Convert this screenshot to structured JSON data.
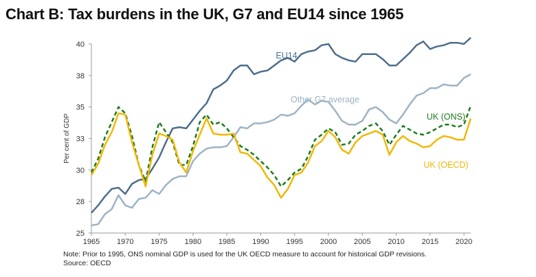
{
  "chart_data": {
    "type": "line",
    "title": "Chart B: Tax burdens in the UK, G7 and EU14 since 1965",
    "xlabel": "",
    "ylabel": "Per cent of GDP",
    "xlim": [
      1965,
      2021
    ],
    "ylim": [
      25,
      40
    ],
    "x_ticks": [
      1965,
      1970,
      1975,
      1980,
      1985,
      1990,
      1995,
      2000,
      2005,
      2010,
      2015,
      2020
    ],
    "y_ticks": [
      25,
      27.5,
      30,
      32.5,
      35,
      37.5,
      40
    ],
    "y_tick_labels": [
      "25",
      "28",
      "30",
      "33",
      "35",
      "38",
      "40"
    ],
    "x": [
      1965,
      1966,
      1967,
      1968,
      1969,
      1970,
      1971,
      1972,
      1973,
      1974,
      1975,
      1976,
      1977,
      1978,
      1979,
      1980,
      1981,
      1982,
      1983,
      1984,
      1985,
      1986,
      1987,
      1988,
      1989,
      1990,
      1991,
      1992,
      1993,
      1994,
      1995,
      1996,
      1997,
      1998,
      1999,
      2000,
      2001,
      2002,
      2003,
      2004,
      2005,
      2006,
      2007,
      2008,
      2009,
      2010,
      2011,
      2012,
      2013,
      2014,
      2015,
      2016,
      2017,
      2018,
      2019,
      2020,
      2021
    ],
    "series": [
      {
        "name": "EU14",
        "label": "EU14",
        "color": "#4d6d8a",
        "dash": "",
        "values": [
          26.6,
          27.2,
          27.9,
          28.5,
          28.6,
          28.1,
          28.9,
          29.2,
          29.3,
          30.1,
          31.0,
          32.2,
          33.3,
          33.4,
          33.3,
          34.0,
          34.7,
          35.3,
          36.4,
          36.7,
          37.1,
          37.9,
          38.3,
          38.3,
          37.6,
          37.8,
          37.9,
          38.3,
          38.7,
          38.9,
          38.6,
          39.2,
          39.4,
          39.5,
          39.9,
          40.0,
          39.2,
          38.9,
          38.7,
          38.6,
          39.2,
          39.2,
          39.2,
          38.8,
          38.3,
          38.3,
          38.8,
          39.3,
          39.9,
          40.2,
          39.6,
          39.8,
          39.9,
          40.1,
          40.1,
          40.0,
          40.5
        ]
      },
      {
        "name": "Other G7 average",
        "label": "Other G7 average",
        "color": "#9db3c5",
        "dash": "",
        "values": [
          25.6,
          25.7,
          26.5,
          26.9,
          28.0,
          27.2,
          27.0,
          27.7,
          27.8,
          28.4,
          28.1,
          28.8,
          29.3,
          29.5,
          29.5,
          30.7,
          31.3,
          31.7,
          31.8,
          31.8,
          31.9,
          32.6,
          33.4,
          33.3,
          33.7,
          33.7,
          33.8,
          34.0,
          34.4,
          34.3,
          34.5,
          35.1,
          35.6,
          35.2,
          35.5,
          35.4,
          34.7,
          33.9,
          33.6,
          33.6,
          33.9,
          34.8,
          35.0,
          34.6,
          34.0,
          33.7,
          34.4,
          35.2,
          35.9,
          36.1,
          36.5,
          36.5,
          36.8,
          36.7,
          36.7,
          37.3,
          37.6
        ]
      },
      {
        "name": "UK (ONS)",
        "label": "UK (ONS)",
        "color": "#1e7b1e",
        "dash": "6,4",
        "values": [
          29.8,
          30.9,
          32.6,
          33.8,
          35.0,
          34.5,
          32.7,
          30.4,
          29.1,
          31.8,
          33.8,
          33.0,
          32.2,
          30.4,
          30.4,
          31.9,
          33.8,
          34.4,
          33.6,
          33.8,
          33.3,
          32.6,
          31.9,
          31.6,
          31.2,
          30.7,
          30.2,
          29.6,
          28.7,
          29.2,
          29.8,
          30.1,
          31.1,
          32.4,
          32.8,
          33.3,
          33.0,
          32.0,
          32.1,
          32.8,
          33.1,
          33.5,
          33.7,
          33.1,
          32.0,
          32.8,
          33.5,
          33.2,
          32.9,
          32.8,
          33.0,
          33.3,
          33.6,
          33.6,
          33.4,
          33.6,
          35.1
        ]
      },
      {
        "name": "UK (OECD)",
        "label": "UK (OECD)",
        "color": "#f2b705",
        "dash": "",
        "values": [
          29.6,
          30.5,
          32.0,
          33.0,
          34.5,
          34.4,
          32.2,
          30.4,
          28.7,
          31.2,
          32.9,
          32.7,
          32.4,
          30.6,
          29.8,
          31.5,
          32.8,
          34.1,
          32.9,
          32.8,
          32.8,
          32.9,
          31.4,
          31.3,
          30.8,
          30.3,
          29.4,
          28.8,
          27.8,
          28.5,
          29.6,
          29.8,
          30.6,
          31.9,
          32.3,
          33.1,
          32.6,
          31.6,
          31.3,
          32.2,
          32.7,
          32.9,
          33.1,
          32.8,
          31.2,
          32.2,
          32.7,
          32.3,
          32.1,
          31.8,
          31.9,
          32.4,
          32.7,
          32.6,
          32.4,
          32.4,
          34.1
        ]
      }
    ]
  },
  "notes": {
    "note": "Note: Prior to 1995, ONS nominal GDP is used for the UK OECD measure to account for historical GDP revisions.",
    "source": "Source: OECD"
  }
}
